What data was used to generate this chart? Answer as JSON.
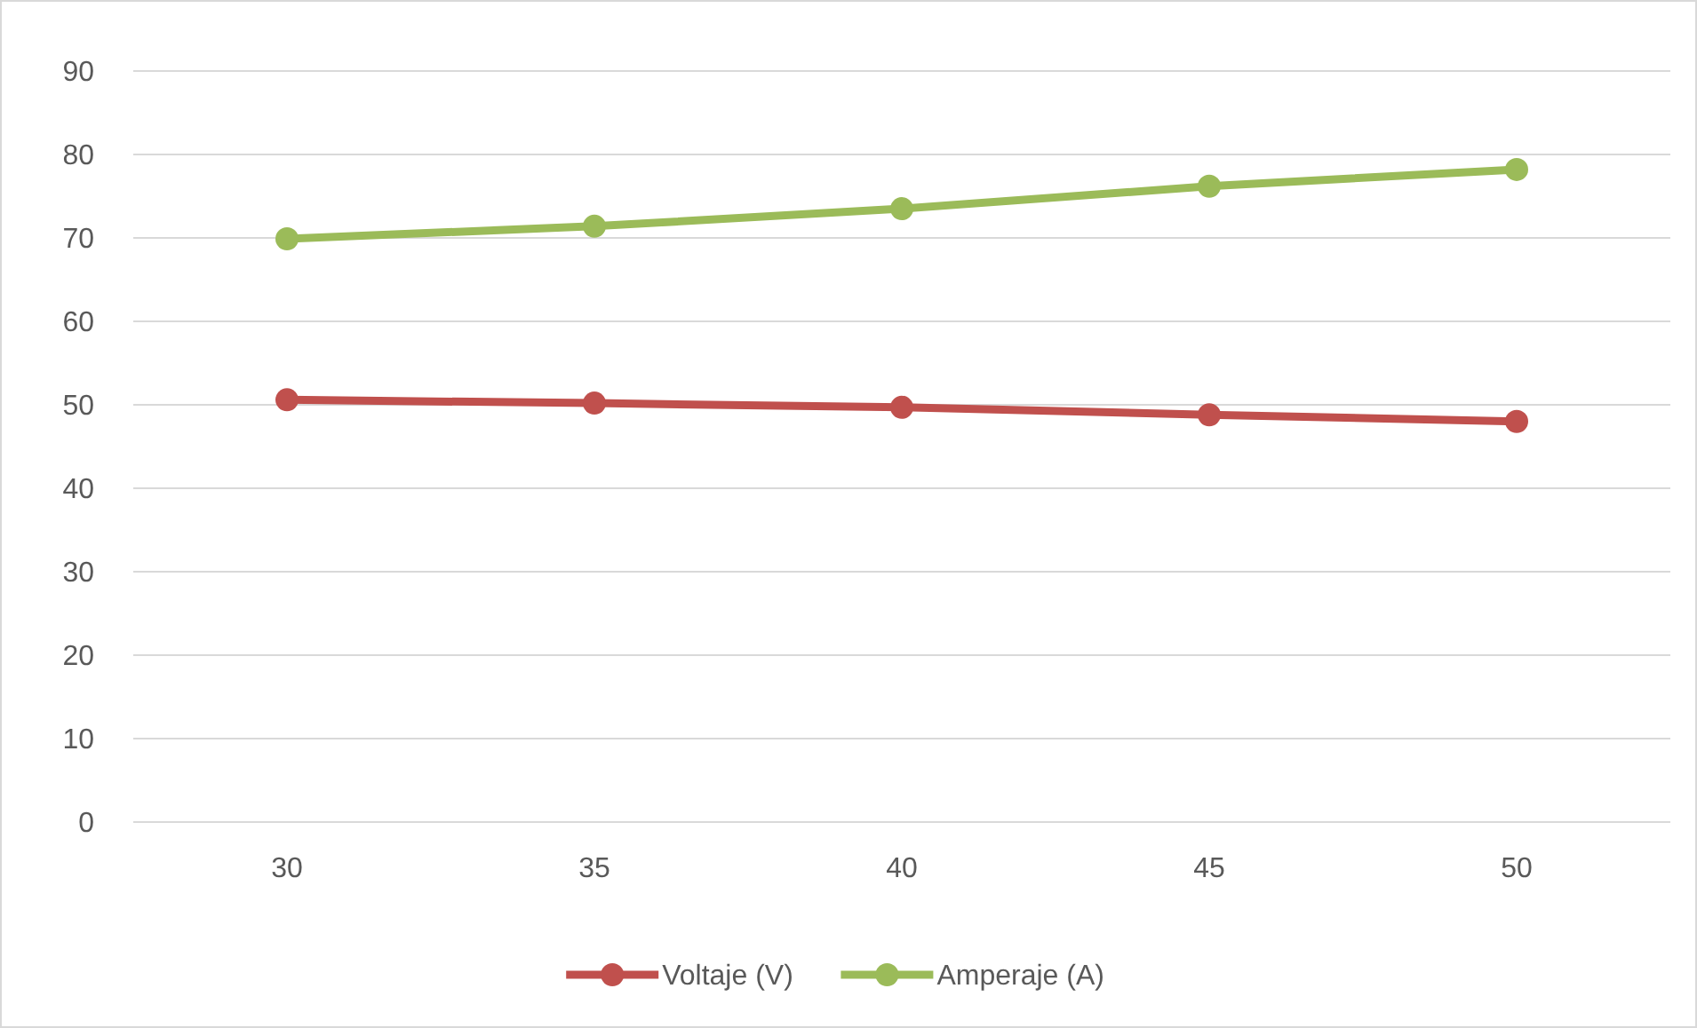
{
  "chart_data": {
    "type": "line",
    "categories": [
      "30",
      "35",
      "40",
      "45",
      "50"
    ],
    "series": [
      {
        "name": "Voltaje (V)",
        "color": "#c0504d",
        "values": [
          50.6,
          50.2,
          49.7,
          48.8,
          48.0
        ]
      },
      {
        "name": "Amperaje (A)",
        "color": "#9bbb59",
        "values": [
          69.9,
          71.4,
          73.5,
          76.2,
          78.2
        ]
      }
    ],
    "ylim": [
      0,
      90
    ],
    "yticks": [
      0,
      10,
      20,
      30,
      40,
      50,
      60,
      70,
      80,
      90
    ],
    "grid": "y",
    "legend": "bottom",
    "marker": "circle",
    "line_style": "solid"
  }
}
